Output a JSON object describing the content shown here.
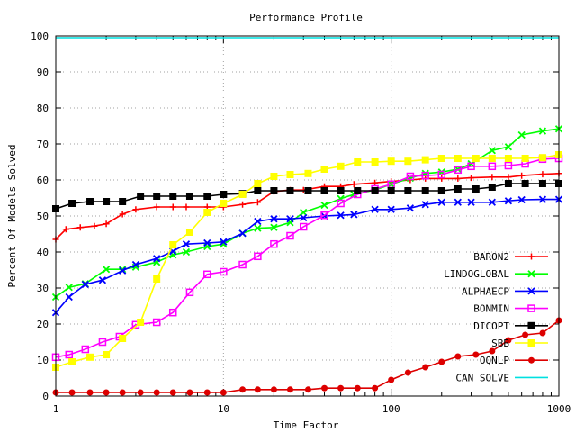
{
  "chart_data": {
    "type": "line",
    "title": "Performance Profile",
    "xlabel": "Time Factor",
    "ylabel": "Percent Of Models Solved",
    "xscale": "log",
    "xlim": [
      1,
      1000
    ],
    "ylim": [
      0,
      100
    ],
    "xticks": [
      1,
      10,
      100,
      1000
    ],
    "xtick_labels": [
      "1",
      "10",
      "100",
      "1000"
    ],
    "yticks": [
      0,
      10,
      20,
      30,
      40,
      50,
      60,
      70,
      80,
      90,
      100
    ],
    "ytick_labels": [
      "0",
      "10",
      "20",
      "30",
      "40",
      "50",
      "60",
      "70",
      "80",
      "90",
      "100"
    ],
    "grid": true,
    "legend_position": "bottom-right",
    "series": [
      {
        "name": "BARON2",
        "color": "#ff0000",
        "marker": "plus",
        "x": [
          1,
          1.15,
          1.4,
          1.7,
          2.0,
          2.5,
          3.0,
          4.0,
          5.0,
          6.0,
          8.0,
          10,
          13,
          16,
          20,
          25,
          30,
          40,
          50,
          60,
          80,
          100,
          130,
          160,
          200,
          250,
          300,
          400,
          500,
          600,
          800,
          1000
        ],
        "y": [
          43.5,
          46.3,
          46.8,
          47.2,
          47.8,
          50.5,
          51.8,
          52.5,
          52.5,
          52.5,
          52.5,
          52.5,
          53.2,
          53.8,
          56.8,
          57.2,
          57.2,
          58.2,
          58.2,
          58.8,
          59.2,
          59.6,
          60.0,
          60.4,
          60.4,
          60.4,
          60.6,
          60.8,
          60.8,
          61.2,
          61.6,
          61.8
        ]
      },
      {
        "name": "LINDOGLOBAL",
        "color": "#00ff00",
        "marker": "cross",
        "x": [
          1,
          1.2,
          1.5,
          2.0,
          2.5,
          3.0,
          4.0,
          5.0,
          6.0,
          8.0,
          10,
          13,
          16,
          20,
          25,
          30,
          40,
          50,
          60,
          80,
          100,
          130,
          160,
          200,
          250,
          300,
          400,
          500,
          600,
          800,
          1000
        ],
        "y": [
          27.5,
          30.2,
          31.2,
          35.2,
          35.2,
          35.8,
          37.2,
          39.2,
          40.0,
          41.5,
          42.2,
          45.2,
          46.6,
          46.8,
          48.2,
          51.0,
          53.0,
          54.8,
          56.0,
          57.2,
          58.8,
          60.5,
          61.8,
          62.2,
          63.0,
          64.5,
          68.2,
          69.2,
          72.5,
          73.6,
          74.2
        ]
      },
      {
        "name": "ALPHAECP",
        "color": "#0000ff",
        "marker": "x",
        "x": [
          1,
          1.2,
          1.5,
          1.9,
          2.5,
          3.0,
          4.0,
          5.0,
          6.0,
          8.0,
          10,
          13,
          16,
          20,
          25,
          30,
          40,
          50,
          60,
          80,
          100,
          130,
          160,
          200,
          250,
          300,
          400,
          500,
          600,
          800,
          1000
        ],
        "y": [
          23.2,
          27.5,
          31.0,
          32.2,
          34.8,
          36.5,
          38.2,
          40.2,
          42.2,
          42.5,
          42.8,
          45.2,
          48.5,
          49.2,
          49.2,
          49.5,
          50.0,
          50.2,
          50.4,
          51.8,
          51.8,
          52.2,
          53.2,
          53.8,
          53.8,
          53.8,
          53.8,
          54.2,
          54.5,
          54.6,
          54.6
        ]
      },
      {
        "name": "BONMIN",
        "color": "#ff00ff",
        "marker": "square",
        "x": [
          1,
          1.2,
          1.5,
          1.9,
          2.4,
          3.0,
          4.0,
          5.0,
          6.3,
          8.0,
          10,
          13,
          16,
          20,
          25,
          30,
          40,
          50,
          63,
          80,
          100,
          130,
          160,
          200,
          250,
          300,
          400,
          500,
          630,
          800,
          1000
        ],
        "y": [
          10.8,
          11.5,
          13.0,
          15.0,
          16.5,
          19.8,
          20.5,
          23.2,
          28.8,
          33.8,
          34.5,
          36.5,
          38.8,
          42.2,
          44.5,
          47.0,
          50.2,
          53.5,
          56.0,
          57.5,
          58.8,
          61.0,
          61.2,
          61.5,
          62.8,
          63.8,
          63.8,
          64.0,
          64.5,
          65.8,
          66.0
        ]
      },
      {
        "name": "DICOPT",
        "color": "#000000",
        "marker": "filled-square",
        "x": [
          1,
          1.25,
          1.6,
          2.0,
          2.5,
          3.2,
          4.0,
          5.0,
          6.3,
          8.0,
          10,
          13,
          16,
          20,
          25,
          32,
          40,
          50,
          63,
          80,
          100,
          126,
          160,
          200,
          250,
          320,
          400,
          500,
          630,
          800,
          1000
        ],
        "y": [
          52.0,
          53.5,
          54.0,
          54.0,
          54.0,
          55.5,
          55.5,
          55.5,
          55.5,
          55.5,
          56.0,
          56.2,
          57.0,
          57.0,
          57.0,
          57.0,
          57.0,
          57.0,
          57.0,
          57.0,
          57.0,
          57.0,
          57.0,
          57.0,
          57.5,
          57.5,
          58.0,
          59.0,
          59.0,
          59.0,
          59.0
        ]
      },
      {
        "name": "SBB",
        "color": "#ffff00",
        "marker": "filled-square",
        "x": [
          1,
          1.25,
          1.6,
          2.0,
          2.5,
          3.2,
          4.0,
          5.0,
          6.3,
          8.0,
          10,
          13,
          16,
          20,
          25,
          32,
          40,
          50,
          63,
          80,
          100,
          126,
          160,
          200,
          250,
          320,
          400,
          500,
          630,
          800,
          1000
        ],
        "y": [
          8.0,
          9.5,
          10.8,
          11.5,
          16.0,
          20.5,
          32.5,
          42.0,
          45.5,
          51.0,
          53.5,
          56.0,
          59.0,
          61.0,
          61.5,
          61.8,
          63.0,
          63.8,
          65.0,
          65.0,
          65.2,
          65.2,
          65.6,
          66.0,
          66.0,
          66.0,
          66.0,
          66.0,
          66.0,
          66.2,
          67.0
        ]
      },
      {
        "name": "OQNLP",
        "color": "#dd0000",
        "marker": "filled-circle",
        "x": [
          1,
          1.25,
          1.6,
          2.0,
          2.5,
          3.2,
          4.0,
          5.0,
          6.3,
          8.0,
          10,
          13,
          16,
          20,
          25,
          32,
          40,
          50,
          63,
          80,
          100,
          126,
          160,
          200,
          250,
          320,
          400,
          500,
          630,
          800,
          1000
        ],
        "y": [
          1.0,
          1.0,
          1.0,
          1.0,
          1.0,
          1.0,
          1.0,
          1.0,
          1.0,
          1.0,
          1.0,
          1.8,
          1.8,
          1.8,
          1.8,
          1.8,
          2.2,
          2.2,
          2.2,
          2.2,
          4.5,
          6.5,
          8.0,
          9.5,
          11.0,
          11.5,
          12.5,
          15.5,
          17.0,
          17.5,
          21.0
        ]
      },
      {
        "name": "CAN SOLVE",
        "color": "#00e0e0",
        "marker": "none",
        "x": [
          1,
          1000
        ],
        "y": [
          99.5,
          99.5
        ]
      }
    ]
  }
}
